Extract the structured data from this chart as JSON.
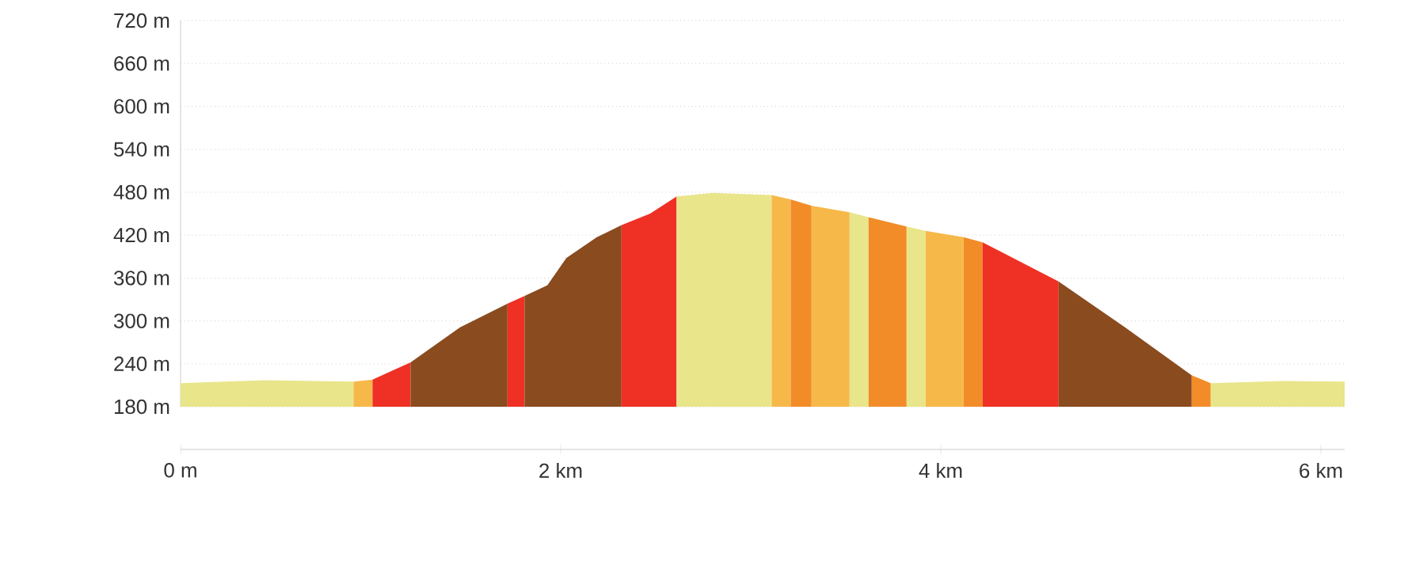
{
  "chart_data": {
    "type": "area",
    "xlim": [
      0,
      6.125
    ],
    "ylim": [
      180,
      720
    ],
    "xticks": [
      {
        "value": 0,
        "label": "0 m"
      },
      {
        "value": 2,
        "label": "2 km"
      },
      {
        "value": 4,
        "label": "4 km"
      },
      {
        "value": 6,
        "label": "6 km"
      }
    ],
    "yticks": [
      {
        "value": 180,
        "label": "180 m"
      },
      {
        "value": 240,
        "label": "240 m"
      },
      {
        "value": 300,
        "label": "300 m"
      },
      {
        "value": 360,
        "label": "360 m"
      },
      {
        "value": 420,
        "label": "420 m"
      },
      {
        "value": 480,
        "label": "480 m"
      },
      {
        "value": 540,
        "label": "540 m"
      },
      {
        "value": 600,
        "label": "600 m"
      },
      {
        "value": 660,
        "label": "660 m"
      },
      {
        "value": 720,
        "label": "720 m"
      }
    ],
    "grid": "y",
    "series": [
      {
        "color": "#e9e58a",
        "x": [
          0,
          0.45,
          0.91
        ],
        "values": [
          213,
          217,
          215
        ]
      },
      {
        "color": "#f7b84a",
        "x": [
          0.91,
          1.01
        ],
        "values": [
          215,
          218
        ]
      },
      {
        "color": "#ee3124",
        "x": [
          1.01,
          1.21
        ],
        "values": [
          218,
          242
        ]
      },
      {
        "color": "#8a4b1f",
        "x": [
          1.21,
          1.47,
          1.72
        ],
        "values": [
          242,
          291,
          324
        ]
      },
      {
        "color": "#ee3124",
        "x": [
          1.72,
          1.81
        ],
        "values": [
          324,
          335
        ]
      },
      {
        "color": "#8a4b1f",
        "x": [
          1.81,
          1.93,
          2.03,
          2.19,
          2.32
        ],
        "values": [
          335,
          350,
          388,
          417,
          434
        ]
      },
      {
        "color": "#ee3124",
        "x": [
          2.32,
          2.47,
          2.61
        ],
        "values": [
          434,
          450,
          474
        ]
      },
      {
        "color": "#e9e58a",
        "x": [
          2.61,
          2.8,
          3.11
        ],
        "values": [
          474,
          479,
          476
        ]
      },
      {
        "color": "#f7b84a",
        "x": [
          3.11,
          3.21
        ],
        "values": [
          476,
          470
        ]
      },
      {
        "color": "#f28c28",
        "x": [
          3.21,
          3.32
        ],
        "values": [
          470,
          461
        ]
      },
      {
        "color": "#f7b84a",
        "x": [
          3.32,
          3.52
        ],
        "values": [
          461,
          452
        ]
      },
      {
        "color": "#e9e58a",
        "x": [
          3.52,
          3.62
        ],
        "values": [
          452,
          445
        ]
      },
      {
        "color": "#f28c28",
        "x": [
          3.62,
          3.82
        ],
        "values": [
          445,
          432
        ]
      },
      {
        "color": "#e9e58a",
        "x": [
          3.82,
          3.92
        ],
        "values": [
          432,
          426
        ]
      },
      {
        "color": "#f7b84a",
        "x": [
          3.92,
          4.12
        ],
        "values": [
          426,
          417
        ]
      },
      {
        "color": "#f28c28",
        "x": [
          4.12,
          4.22
        ],
        "values": [
          417,
          410
        ]
      },
      {
        "color": "#ee3124",
        "x": [
          4.22,
          4.38,
          4.62
        ],
        "values": [
          410,
          388,
          355
        ]
      },
      {
        "color": "#8a4b1f",
        "x": [
          4.62,
          4.97,
          5.32
        ],
        "values": [
          355,
          291,
          224
        ]
      },
      {
        "color": "#f28c28",
        "x": [
          5.32,
          5.42
        ],
        "values": [
          224,
          213
        ]
      },
      {
        "color": "#e9e58a",
        "x": [
          5.42,
          5.8,
          6.125
        ],
        "values": [
          213,
          216,
          215
        ]
      }
    ]
  }
}
